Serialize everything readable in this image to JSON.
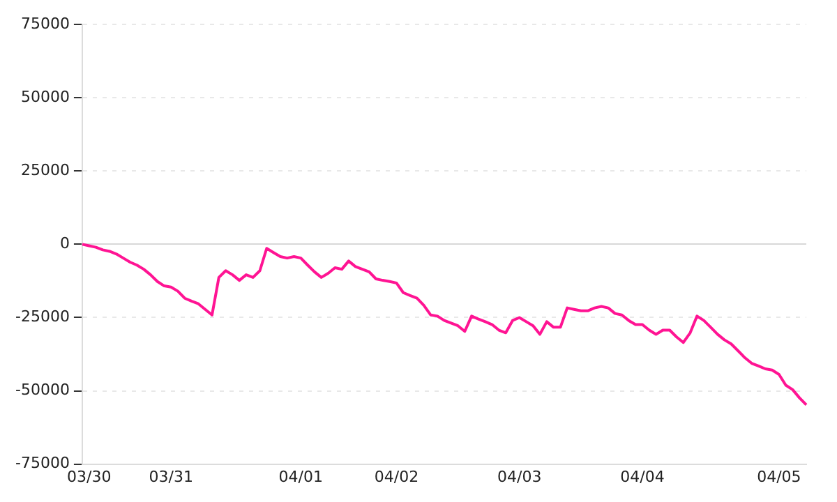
{
  "chart_data": {
    "type": "line",
    "categories": [
      null,
      "03/30",
      null,
      null,
      null,
      null,
      null,
      null,
      null,
      null,
      null,
      null,
      null,
      "03/31",
      null,
      null,
      null,
      null,
      null,
      null,
      null,
      null,
      null,
      null,
      null,
      null,
      null,
      null,
      null,
      null,
      null,
      null,
      "04/01",
      null,
      null,
      null,
      null,
      null,
      null,
      null,
      null,
      null,
      null,
      null,
      null,
      null,
      "04/02",
      null,
      null,
      null,
      null,
      null,
      null,
      null,
      null,
      null,
      null,
      null,
      null,
      null,
      null,
      null,
      null,
      null,
      "04/03",
      null,
      null,
      null,
      null,
      null,
      null,
      null,
      null,
      null,
      null,
      null,
      null,
      null,
      null,
      null,
      null,
      null,
      "04/04",
      null,
      null,
      null,
      null,
      null,
      null,
      null,
      null,
      null,
      null,
      null,
      null,
      null,
      null,
      null,
      null,
      null,
      null,
      null,
      "04/05",
      null,
      null,
      null,
      null
    ],
    "series": [
      {
        "color": "#ff1493",
        "values": [
          0,
          -500,
          -1000,
          -1900,
          -2400,
          -3300,
          -4700,
          -6100,
          -7100,
          -8500,
          -10400,
          -12700,
          -14200,
          -14600,
          -16000,
          -18400,
          -19400,
          -20300,
          -22200,
          -24100,
          -11300,
          -9000,
          -10400,
          -12300,
          -10400,
          -11300,
          -9000,
          -1400,
          -2800,
          -4200,
          -4700,
          -4200,
          -4700,
          -7100,
          -9400,
          -11300,
          -9900,
          -8000,
          -8500,
          -5700,
          -7600,
          -8500,
          -9400,
          -11800,
          -12300,
          -12700,
          -13200,
          -16500,
          -17500,
          -18400,
          -20800,
          -24100,
          -24500,
          -26000,
          -26900,
          -27800,
          -29700,
          -24500,
          -25500,
          -26400,
          -27400,
          -29300,
          -30200,
          -26000,
          -25000,
          -26400,
          -27800,
          -30700,
          -26400,
          -28300,
          -28300,
          -21700,
          -22200,
          -22700,
          -22700,
          -21700,
          -21200,
          -21700,
          -23600,
          -24100,
          -26000,
          -27400,
          -27400,
          -29300,
          -30700,
          -29300,
          -29300,
          -31600,
          -33500,
          -30200,
          -24500,
          -26000,
          -28300,
          -30700,
          -32600,
          -34000,
          -36300,
          -38700,
          -40600,
          -41500,
          -42500,
          -42900,
          -44400,
          -48100,
          -49600,
          -52400,
          -54800
        ]
      }
    ],
    "ylim": [
      -75000,
      75000
    ],
    "yticks": [
      -75000,
      -50000,
      -25000,
      0,
      25000,
      50000,
      75000
    ],
    "grid": "y",
    "legend": false,
    "marker": "none",
    "line_style": "solid"
  }
}
